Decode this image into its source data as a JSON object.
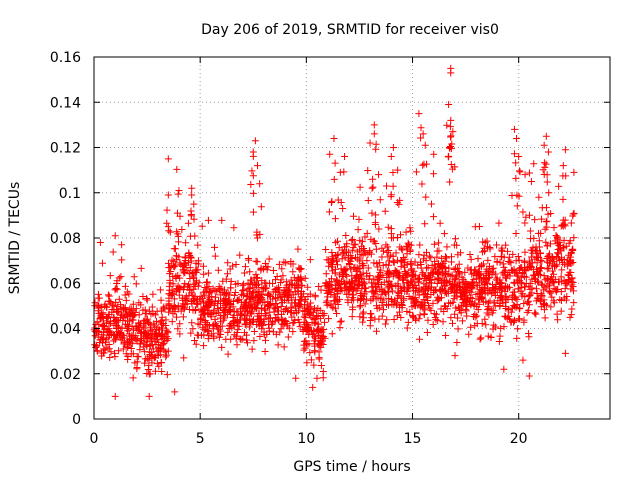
{
  "chart_data": {
    "type": "scatter",
    "title": "Day 206 of 2019, SRMTID for receiver vis0",
    "xlabel": "GPS time / hours",
    "ylabel": "SRMTID / TECUs",
    "xlim": [
      0,
      24.3
    ],
    "ylim": [
      0,
      0.16
    ],
    "xticks": [
      0,
      5,
      10,
      15,
      20
    ],
    "xtick_labels": [
      "0",
      "5",
      "10",
      "15",
      "20"
    ],
    "yticks": [
      0,
      0.02,
      0.04,
      0.06,
      0.08,
      0.1,
      0.12,
      0.14,
      0.16
    ],
    "ytick_labels": [
      "0",
      "0.02",
      "0.04",
      "0.06",
      "0.08",
      "0.1",
      "0.12",
      "0.14",
      "0.16"
    ],
    "grid": true,
    "marker": "+",
    "color": "#ff0000",
    "series": [
      {
        "name": "SRMTID",
        "segments": [
          {
            "start": 0.0,
            "end": 2.0,
            "median": 0.041,
            "spread": 0.011
          },
          {
            "start": 2.0,
            "end": 3.5,
            "median": 0.037,
            "spread": 0.011
          },
          {
            "start": 3.5,
            "end": 5.0,
            "median": 0.056,
            "spread": 0.014
          },
          {
            "start": 5.0,
            "end": 7.5,
            "median": 0.048,
            "spread": 0.011
          },
          {
            "start": 7.5,
            "end": 9.8,
            "median": 0.052,
            "spread": 0.012
          },
          {
            "start": 9.8,
            "end": 10.9,
            "median": 0.04,
            "spread": 0.011
          },
          {
            "start": 10.9,
            "end": 15.0,
            "median": 0.062,
            "spread": 0.013
          },
          {
            "start": 15.0,
            "end": 18.0,
            "median": 0.058,
            "spread": 0.012
          },
          {
            "start": 18.0,
            "end": 20.5,
            "median": 0.057,
            "spread": 0.013
          },
          {
            "start": 20.5,
            "end": 22.6,
            "median": 0.066,
            "spread": 0.014
          }
        ],
        "peaks": [
          {
            "x": 0.3,
            "y": 0.078
          },
          {
            "x": 1.0,
            "y": 0.081
          },
          {
            "x": 1.3,
            "y": 0.077
          },
          {
            "x": 3.5,
            "y": 0.115
          },
          {
            "x": 3.5,
            "y": 0.099
          },
          {
            "x": 4.0,
            "y": 0.101
          },
          {
            "x": 4.6,
            "y": 0.102
          },
          {
            "x": 4.6,
            "y": 0.099
          },
          {
            "x": 4.7,
            "y": 0.095
          },
          {
            "x": 7.6,
            "y": 0.123
          },
          {
            "x": 7.5,
            "y": 0.118
          },
          {
            "x": 7.7,
            "y": 0.112
          },
          {
            "x": 7.8,
            "y": 0.104
          },
          {
            "x": 11.3,
            "y": 0.124
          },
          {
            "x": 11.1,
            "y": 0.117
          },
          {
            "x": 11.6,
            "y": 0.109
          },
          {
            "x": 11.8,
            "y": 0.116
          },
          {
            "x": 13.2,
            "y": 0.13
          },
          {
            "x": 13.2,
            "y": 0.126
          },
          {
            "x": 13.4,
            "y": 0.108
          },
          {
            "x": 13.0,
            "y": 0.122
          },
          {
            "x": 14.1,
            "y": 0.12
          },
          {
            "x": 14.0,
            "y": 0.116
          },
          {
            "x": 14.3,
            "y": 0.11
          },
          {
            "x": 15.3,
            "y": 0.135
          },
          {
            "x": 15.5,
            "y": 0.126
          },
          {
            "x": 15.6,
            "y": 0.121
          },
          {
            "x": 16.0,
            "y": 0.117
          },
          {
            "x": 16.8,
            "y": 0.155
          },
          {
            "x": 16.8,
            "y": 0.153
          },
          {
            "x": 16.7,
            "y": 0.139
          },
          {
            "x": 16.8,
            "y": 0.132
          },
          {
            "x": 16.9,
            "y": 0.127
          },
          {
            "x": 19.8,
            "y": 0.128
          },
          {
            "x": 19.9,
            "y": 0.124
          },
          {
            "x": 20.0,
            "y": 0.116
          },
          {
            "x": 20.3,
            "y": 0.108
          },
          {
            "x": 20.6,
            "y": 0.105
          },
          {
            "x": 21.3,
            "y": 0.125
          },
          {
            "x": 21.2,
            "y": 0.121
          },
          {
            "x": 21.4,
            "y": 0.118
          },
          {
            "x": 22.2,
            "y": 0.119
          },
          {
            "x": 22.1,
            "y": 0.112
          },
          {
            "x": 22.6,
            "y": 0.109
          }
        ],
        "lows": [
          {
            "x": 1.0,
            "y": 0.01
          },
          {
            "x": 2.6,
            "y": 0.01
          },
          {
            "x": 3.8,
            "y": 0.012
          },
          {
            "x": 9.5,
            "y": 0.018
          },
          {
            "x": 10.3,
            "y": 0.014
          },
          {
            "x": 10.5,
            "y": 0.018
          },
          {
            "x": 10.8,
            "y": 0.021
          },
          {
            "x": 19.3,
            "y": 0.022
          },
          {
            "x": 20.5,
            "y": 0.019
          },
          {
            "x": 20.2,
            "y": 0.026
          },
          {
            "x": 22.2,
            "y": 0.029
          },
          {
            "x": 17.0,
            "y": 0.028
          }
        ]
      }
    ]
  }
}
